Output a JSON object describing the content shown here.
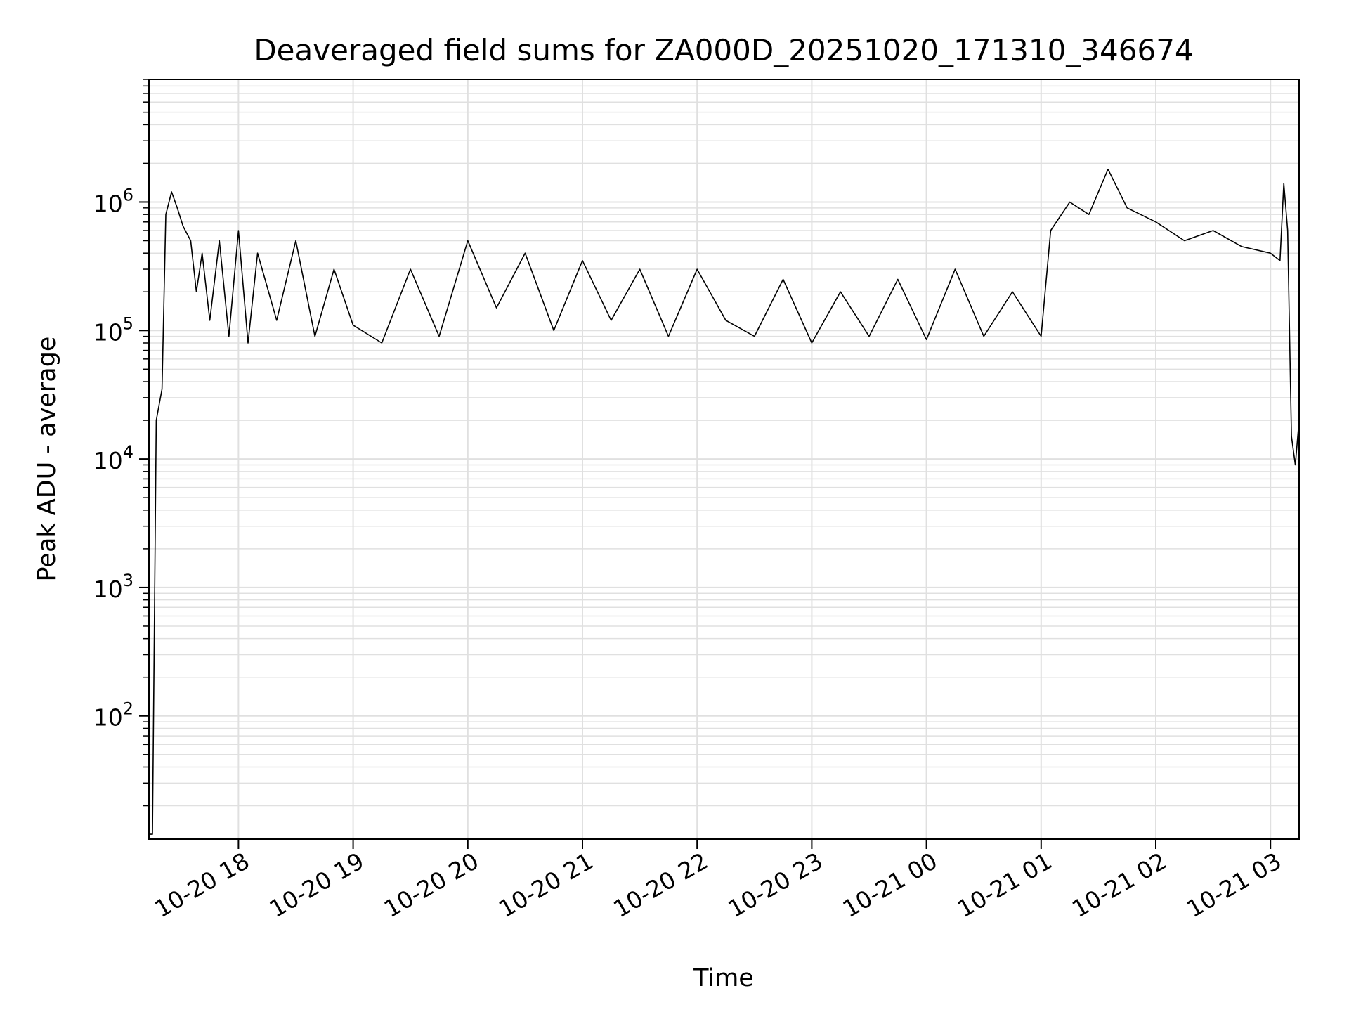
{
  "chart_data": {
    "type": "line",
    "title": "Deaveraged field sums for ZA000D_20251020_171310_346674",
    "xlabel": "Time",
    "ylabel": "Peak ADU - average",
    "yscale": "log",
    "ylim": [
      11,
      9000000
    ],
    "xlim": [
      "2025-10-20T17:13:10",
      "2025-10-21T03:15:00"
    ],
    "grid": true,
    "legend": "none",
    "line_color": "#000000",
    "grid_color": "#e0e0e0",
    "x_ticks": [
      {
        "value": "2025-10-20T18:00:00",
        "label": "10-20 18"
      },
      {
        "value": "2025-10-20T19:00:00",
        "label": "10-20 19"
      },
      {
        "value": "2025-10-20T20:00:00",
        "label": "10-20 20"
      },
      {
        "value": "2025-10-20T21:00:00",
        "label": "10-20 21"
      },
      {
        "value": "2025-10-20T22:00:00",
        "label": "10-20 22"
      },
      {
        "value": "2025-10-20T23:00:00",
        "label": "10-20 23"
      },
      {
        "value": "2025-10-21T00:00:00",
        "label": "10-21 00"
      },
      {
        "value": "2025-10-21T01:00:00",
        "label": "10-21 01"
      },
      {
        "value": "2025-10-21T02:00:00",
        "label": "10-21 02"
      },
      {
        "value": "2025-10-21T03:00:00",
        "label": "10-21 03"
      }
    ],
    "y_ticks": [
      {
        "value": 100,
        "base": "10",
        "exp": "2"
      },
      {
        "value": 1000,
        "base": "10",
        "exp": "3"
      },
      {
        "value": 10000,
        "base": "10",
        "exp": "4"
      },
      {
        "value": 100000,
        "base": "10",
        "exp": "5"
      },
      {
        "value": 1000000,
        "base": "10",
        "exp": "6"
      }
    ],
    "series": [
      {
        "x": [
          "2025-10-20T17:13:10",
          "2025-10-20T17:15:00",
          "2025-10-20T17:17:00",
          "2025-10-20T17:20:00",
          "2025-10-20T17:22:00",
          "2025-10-20T17:25:00",
          "2025-10-20T17:28:00",
          "2025-10-20T17:31:00",
          "2025-10-20T17:35:00",
          "2025-10-20T17:38:00",
          "2025-10-20T17:41:00",
          "2025-10-20T17:45:00",
          "2025-10-20T17:50:00",
          "2025-10-20T17:55:00",
          "2025-10-20T18:00:00",
          "2025-10-20T18:05:00",
          "2025-10-20T18:10:00",
          "2025-10-20T18:20:00",
          "2025-10-20T18:30:00",
          "2025-10-20T18:40:00",
          "2025-10-20T18:50:00",
          "2025-10-20T19:00:00",
          "2025-10-20T19:15:00",
          "2025-10-20T19:30:00",
          "2025-10-20T19:45:00",
          "2025-10-20T20:00:00",
          "2025-10-20T20:15:00",
          "2025-10-20T20:30:00",
          "2025-10-20T20:45:00",
          "2025-10-20T21:00:00",
          "2025-10-20T21:15:00",
          "2025-10-20T21:30:00",
          "2025-10-20T21:45:00",
          "2025-10-20T22:00:00",
          "2025-10-20T22:15:00",
          "2025-10-20T22:30:00",
          "2025-10-20T22:45:00",
          "2025-10-20T23:00:00",
          "2025-10-20T23:15:00",
          "2025-10-20T23:30:00",
          "2025-10-20T23:45:00",
          "2025-10-21T00:00:00",
          "2025-10-21T00:15:00",
          "2025-10-21T00:30:00",
          "2025-10-21T00:45:00",
          "2025-10-21T01:00:00",
          "2025-10-21T01:05:00",
          "2025-10-21T01:15:00",
          "2025-10-21T01:25:00",
          "2025-10-21T01:35:00",
          "2025-10-21T01:45:00",
          "2025-10-21T02:00:00",
          "2025-10-21T02:15:00",
          "2025-10-21T02:30:00",
          "2025-10-21T02:45:00",
          "2025-10-21T03:00:00",
          "2025-10-21T03:05:00",
          "2025-10-21T03:07:00",
          "2025-10-21T03:09:00",
          "2025-10-21T03:11:00",
          "2025-10-21T03:13:00",
          "2025-10-21T03:15:00"
        ],
        "y": [
          12,
          12,
          20000,
          35000,
          800000,
          1200000,
          900000,
          650000,
          500000,
          200000,
          400000,
          120000,
          500000,
          90000,
          600000,
          80000,
          400000,
          120000,
          500000,
          90000,
          300000,
          110000,
          80000,
          300000,
          90000,
          500000,
          150000,
          400000,
          100000,
          350000,
          120000,
          300000,
          90000,
          300000,
          120000,
          90000,
          250000,
          80000,
          200000,
          90000,
          250000,
          85000,
          300000,
          90000,
          200000,
          90000,
          600000,
          1000000,
          800000,
          1800000,
          900000,
          700000,
          500000,
          600000,
          450000,
          400000,
          350000,
          1400000,
          600000,
          15000,
          9000,
          20000
        ]
      }
    ]
  }
}
